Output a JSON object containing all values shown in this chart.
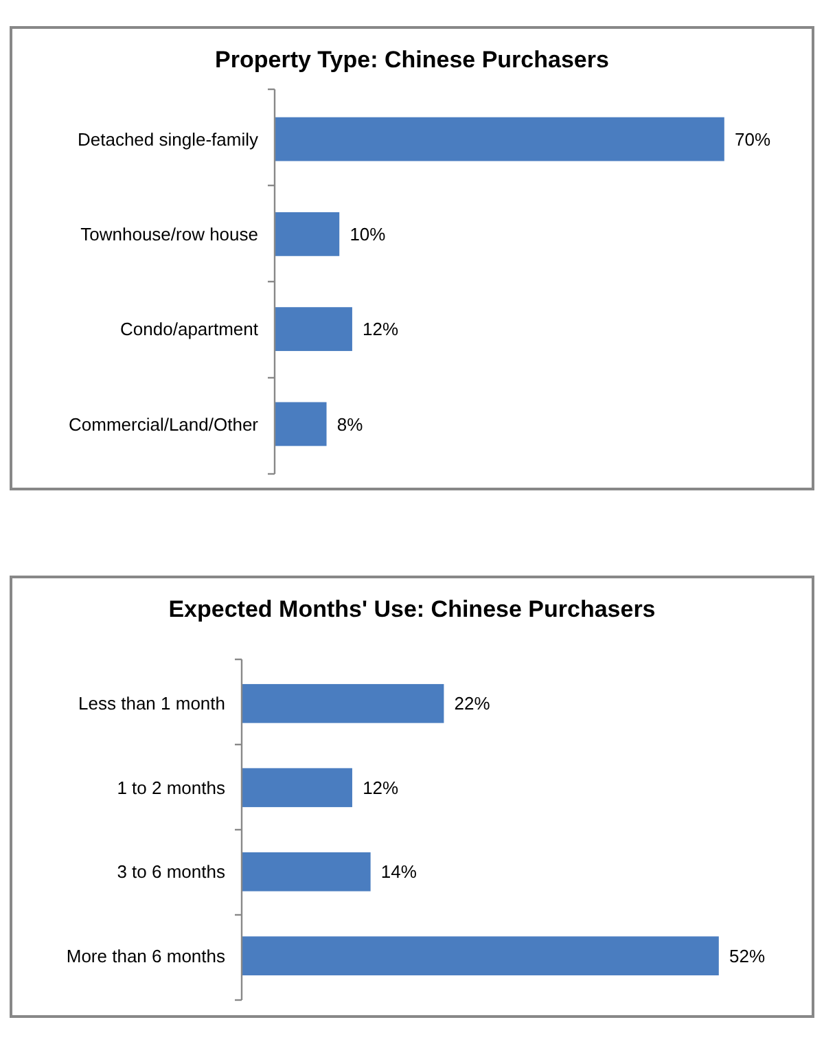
{
  "chart_data": [
    {
      "type": "bar",
      "orientation": "horizontal",
      "title": "Property Type: Chinese Purchasers",
      "categories": [
        "Detached single-family",
        "Townhouse/row house",
        "Condo/apartment",
        "Commercial/Land/Other"
      ],
      "values": [
        70,
        10,
        12,
        8
      ],
      "value_labels": [
        "70%",
        "10%",
        "12%",
        "8%"
      ],
      "color": "#4a7dc0"
    },
    {
      "type": "bar",
      "orientation": "horizontal",
      "title": "Expected Months' Use: Chinese Purchasers",
      "categories": [
        "Less than 1 month",
        "1 to 2 months",
        "3 to 6 months",
        "More than 6 months"
      ],
      "values": [
        22,
        12,
        14,
        52
      ],
      "value_labels": [
        "22%",
        "12%",
        "14%",
        "52%"
      ],
      "color": "#4a7dc0"
    }
  ]
}
